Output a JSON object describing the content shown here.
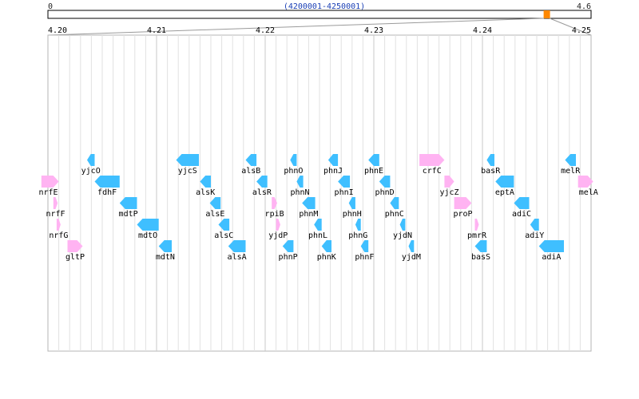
{
  "overview": {
    "start_label": "0",
    "end_label": "4.6",
    "range_label": "(4200001-4250001)",
    "total_max": 4.6,
    "window_start": 4.2,
    "window_end": 4.25,
    "marker_color": "#ff8800"
  },
  "axis": {
    "min": 4.2,
    "max": 4.25,
    "ticks": [
      "4.20",
      "4.21",
      "4.22",
      "4.23",
      "4.24",
      "4.25"
    ],
    "minor_step": 0.001
  },
  "colors": {
    "forward": "#ffb3f2",
    "reverse": "#3fbfff",
    "grid_major": "#c8c8c8",
    "grid_minor": "#e2e2e2",
    "frame": "#b4b4b4"
  },
  "genes": [
    {
      "name": "nrfE",
      "start": 4.1994,
      "end": 4.201,
      "strand": "+",
      "row": 2,
      "label_side": "left"
    },
    {
      "name": "nrfF",
      "start": 4.2005,
      "end": 4.2009,
      "strand": "+",
      "row": 3,
      "label_side": "center"
    },
    {
      "name": "nrfG",
      "start": 4.2008,
      "end": 4.2011,
      "strand": "+",
      "row": 4,
      "label_side": "center"
    },
    {
      "name": "gltP",
      "start": 4.2018,
      "end": 4.2032,
      "strand": "+",
      "row": 5,
      "label_side": "center"
    },
    {
      "name": "yjcO",
      "start": 4.2036,
      "end": 4.2043,
      "strand": "-",
      "row": 1,
      "label_side": "center"
    },
    {
      "name": "fdhF",
      "start": 4.2043,
      "end": 4.2066,
      "strand": "-",
      "row": 2,
      "label_side": "center"
    },
    {
      "name": "mdtP",
      "start": 4.2066,
      "end": 4.2082,
      "strand": "-",
      "row": 3,
      "label_side": "center"
    },
    {
      "name": "mdtO",
      "start": 4.2082,
      "end": 4.2102,
      "strand": "-",
      "row": 4,
      "label_side": "center"
    },
    {
      "name": "mdtN",
      "start": 4.2102,
      "end": 4.2114,
      "strand": "-",
      "row": 5,
      "label_side": "center"
    },
    {
      "name": "yjcS",
      "start": 4.2118,
      "end": 4.2139,
      "strand": "-",
      "row": 1,
      "label_side": "center"
    },
    {
      "name": "alsK",
      "start": 4.214,
      "end": 4.215,
      "strand": "-",
      "row": 2,
      "label_side": "center"
    },
    {
      "name": "alsE",
      "start": 4.2149,
      "end": 4.2159,
      "strand": "-",
      "row": 3,
      "label_side": "center"
    },
    {
      "name": "alsC",
      "start": 4.2157,
      "end": 4.2167,
      "strand": "-",
      "row": 4,
      "label_side": "center"
    },
    {
      "name": "alsA",
      "start": 4.2166,
      "end": 4.2182,
      "strand": "-",
      "row": 5,
      "label_side": "center"
    },
    {
      "name": "alsB",
      "start": 4.2182,
      "end": 4.2192,
      "strand": "-",
      "row": 1,
      "label_side": "center"
    },
    {
      "name": "alsR",
      "start": 4.2192,
      "end": 4.2202,
      "strand": "-",
      "row": 2,
      "label_side": "center"
    },
    {
      "name": "rpiB",
      "start": 4.2206,
      "end": 4.2211,
      "strand": "+",
      "row": 3,
      "label_side": "center"
    },
    {
      "name": "yjdP",
      "start": 4.221,
      "end": 4.2214,
      "strand": "+",
      "row": 4,
      "label_side": "center"
    },
    {
      "name": "phnP",
      "start": 4.2216,
      "end": 4.2226,
      "strand": "-",
      "row": 5,
      "label_side": "center"
    },
    {
      "name": "phnO",
      "start": 4.2223,
      "end": 4.2229,
      "strand": "-",
      "row": 1,
      "label_side": "center"
    },
    {
      "name": "phnN",
      "start": 4.2229,
      "end": 4.2235,
      "strand": "-",
      "row": 2,
      "label_side": "center"
    },
    {
      "name": "phnM",
      "start": 4.2234,
      "end": 4.2246,
      "strand": "-",
      "row": 3,
      "label_side": "center"
    },
    {
      "name": "phnL",
      "start": 4.2245,
      "end": 4.2252,
      "strand": "-",
      "row": 4,
      "label_side": "center"
    },
    {
      "name": "phnK",
      "start": 4.2252,
      "end": 4.2261,
      "strand": "-",
      "row": 5,
      "label_side": "center"
    },
    {
      "name": "phnJ",
      "start": 4.2258,
      "end": 4.2267,
      "strand": "-",
      "row": 1,
      "label_side": "center"
    },
    {
      "name": "phnI",
      "start": 4.2267,
      "end": 4.2278,
      "strand": "-",
      "row": 2,
      "label_side": "center"
    },
    {
      "name": "phnH",
      "start": 4.2277,
      "end": 4.2283,
      "strand": "-",
      "row": 3,
      "label_side": "center"
    },
    {
      "name": "phnG",
      "start": 4.2283,
      "end": 4.2288,
      "strand": "-",
      "row": 4,
      "label_side": "center"
    },
    {
      "name": "phnF",
      "start": 4.2288,
      "end": 4.2295,
      "strand": "-",
      "row": 5,
      "label_side": "center"
    },
    {
      "name": "phnE",
      "start": 4.2295,
      "end": 4.2305,
      "strand": "-",
      "row": 1,
      "label_side": "center"
    },
    {
      "name": "phnD",
      "start": 4.2305,
      "end": 4.2315,
      "strand": "-",
      "row": 2,
      "label_side": "center"
    },
    {
      "name": "phnC",
      "start": 4.2315,
      "end": 4.2323,
      "strand": "-",
      "row": 3,
      "label_side": "center"
    },
    {
      "name": "yjdN",
      "start": 4.2324,
      "end": 4.2329,
      "strand": "-",
      "row": 4,
      "label_side": "center"
    },
    {
      "name": "yjdM",
      "start": 4.2332,
      "end": 4.2337,
      "strand": "-",
      "row": 5,
      "label_side": "center"
    },
    {
      "name": "crfC",
      "start": 4.2342,
      "end": 4.2365,
      "strand": "+",
      "row": 1,
      "label_side": "center"
    },
    {
      "name": "yjcZ",
      "start": 4.2365,
      "end": 4.2374,
      "strand": "+",
      "row": 2,
      "label_side": "center"
    },
    {
      "name": "proP",
      "start": 4.2374,
      "end": 4.239,
      "strand": "+",
      "row": 3,
      "label_side": "center"
    },
    {
      "name": "pmrR",
      "start": 4.2393,
      "end": 4.2396,
      "strand": "+",
      "row": 4,
      "label_side": "center"
    },
    {
      "name": "basS",
      "start": 4.2393,
      "end": 4.2404,
      "strand": "-",
      "row": 5,
      "label_side": "center"
    },
    {
      "name": "basR",
      "start": 4.2404,
      "end": 4.2411,
      "strand": "-",
      "row": 1,
      "label_side": "center"
    },
    {
      "name": "eptA",
      "start": 4.2412,
      "end": 4.2429,
      "strand": "-",
      "row": 2,
      "label_side": "center"
    },
    {
      "name": "adiC",
      "start": 4.2429,
      "end": 4.2443,
      "strand": "-",
      "row": 3,
      "label_side": "center"
    },
    {
      "name": "adiY",
      "start": 4.2444,
      "end": 4.2452,
      "strand": "-",
      "row": 4,
      "label_side": "center"
    },
    {
      "name": "adiA",
      "start": 4.2452,
      "end": 4.2475,
      "strand": "-",
      "row": 5,
      "label_side": "center"
    },
    {
      "name": "melR",
      "start": 4.2476,
      "end": 4.2486,
      "strand": "-",
      "row": 1,
      "label_side": "center"
    },
    {
      "name": "melA",
      "start": 4.2488,
      "end": 4.2502,
      "strand": "+",
      "row": 2,
      "label_side": "right"
    }
  ]
}
